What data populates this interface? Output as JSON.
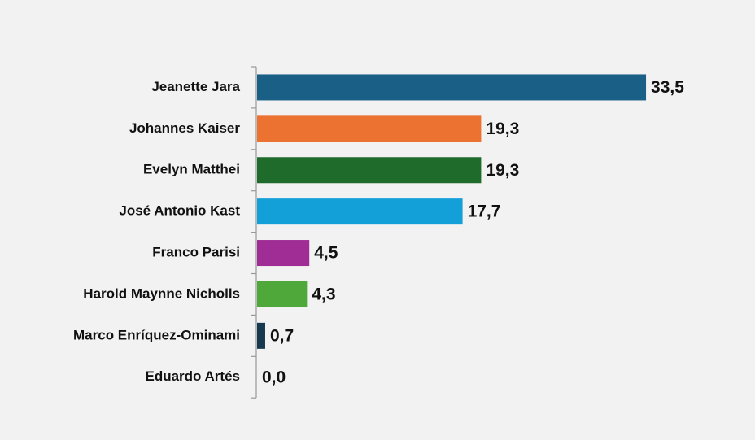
{
  "chart_data": {
    "type": "bar",
    "orientation": "horizontal",
    "categories": [
      "Jeanette Jara",
      "Johannes Kaiser",
      "Evelyn Matthei",
      "José Antonio Kast",
      "Franco Parisi",
      "Harold Maynne Nicholls",
      "Marco Enríquez-Ominami",
      "Eduardo Artés"
    ],
    "values": [
      33.5,
      19.3,
      19.3,
      17.7,
      4.5,
      4.3,
      0.7,
      0.0
    ],
    "value_labels": [
      "33,5",
      "19,3",
      "19,3",
      "17,7",
      "4,5",
      "4,3",
      "0,7",
      "0,0"
    ],
    "colors": [
      "#1a5f86",
      "#ec7232",
      "#1e6b2b",
      "#139fd8",
      "#a02c96",
      "#4ea93a",
      "#17394f",
      "#17394f"
    ]
  }
}
